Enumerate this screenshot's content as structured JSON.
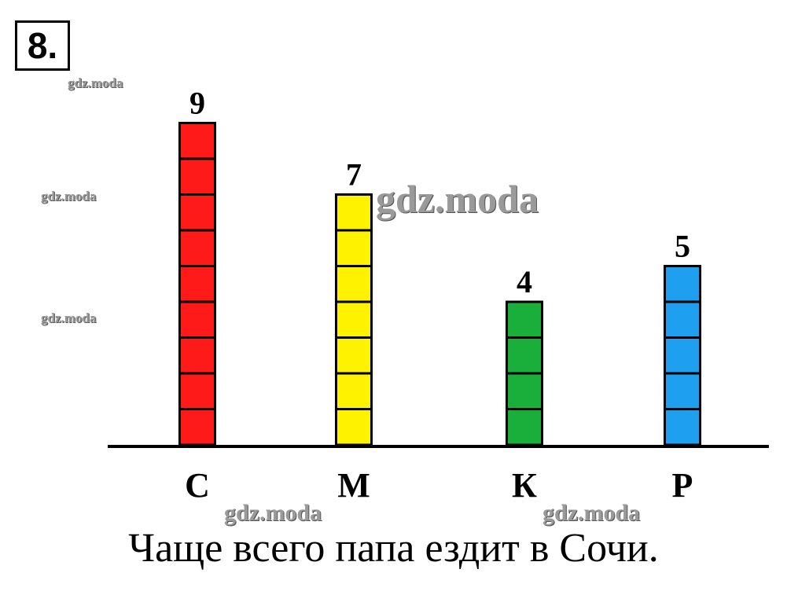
{
  "task": {
    "number": "8."
  },
  "chart_data": {
    "type": "bar",
    "categories": [
      "С",
      "М",
      "К",
      "Р"
    ],
    "values": [
      9,
      7,
      4,
      5
    ],
    "colors": [
      "#ff1a1a",
      "#fff200",
      "#1aae3a",
      "#1e9ff0"
    ],
    "data_labels": [
      "9",
      "7",
      "4",
      "5"
    ],
    "ylim": [
      0,
      9
    ],
    "grid": false,
    "title": "",
    "xlabel": "",
    "ylabel": ""
  },
  "conclusion": "Чаще всего папа ездит в Сочи.",
  "watermarks": [
    "gdz.moda",
    "gdz.moda",
    "gdz.moda",
    "gdz.moda",
    "gdz.moda",
    "gdz.moda"
  ]
}
